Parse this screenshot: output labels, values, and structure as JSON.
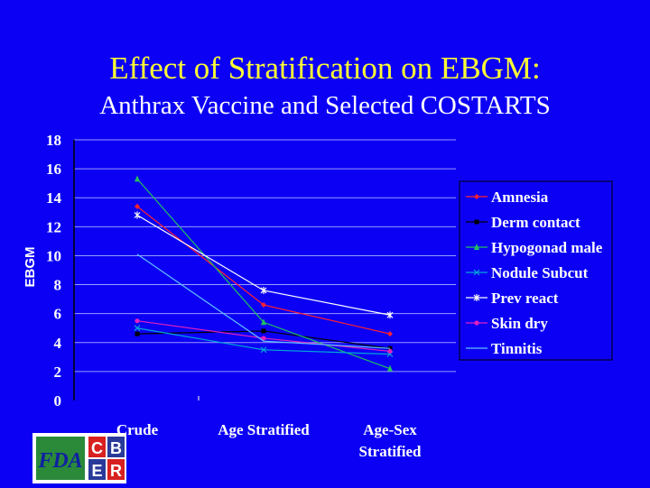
{
  "slide": {
    "title": "Effect of Stratification on EBGM:",
    "subtitle": "Anthrax Vaccine and Selected COSTARTS",
    "logo": {
      "fda": "FDA",
      "cber": [
        "C",
        "B",
        "E",
        "R"
      ]
    }
  },
  "colors": {
    "background": "#0b00f4",
    "title": "#ffff33",
    "text": "#ffffff"
  },
  "chart_data": {
    "type": "line",
    "title": "",
    "xlabel": "",
    "ylabel": "EBGM",
    "ylim": [
      0,
      18
    ],
    "yticks": [
      0,
      2,
      4,
      6,
      8,
      10,
      12,
      14,
      16,
      18
    ],
    "categories": [
      "Crude",
      "Age Stratified",
      "Age-Sex Stratified"
    ],
    "category_labels": [
      [
        "Crude"
      ],
      [
        "Age   Stratified"
      ],
      [
        "Age-Sex",
        "Stratified"
      ]
    ],
    "grid": true,
    "legend_position": "right",
    "series": [
      {
        "name": "Amnesia",
        "values": [
          13.4,
          6.6,
          4.6
        ],
        "color": "#ff2030",
        "marker": "diamond"
      },
      {
        "name": "Derm contact",
        "values": [
          4.6,
          4.8,
          3.6
        ],
        "color": "#000000",
        "marker": "square"
      },
      {
        "name": "Hypogonad male",
        "values": [
          15.3,
          5.4,
          2.2
        ],
        "color": "#20c060",
        "marker": "triangle"
      },
      {
        "name": "Nodule Subcut",
        "values": [
          5.0,
          3.5,
          3.2
        ],
        "color": "#00a8d8",
        "marker": "x"
      },
      {
        "name": "Prev react",
        "values": [
          12.8,
          7.6,
          5.9
        ],
        "color": "#ffffff",
        "marker": "star"
      },
      {
        "name": "Skin dry",
        "values": [
          5.5,
          4.3,
          3.4
        ],
        "color": "#e020c0",
        "marker": "circle"
      },
      {
        "name": "Tinnitis",
        "values": [
          10.1,
          4.1,
          3.6
        ],
        "color": "#60c0ff",
        "marker": "none"
      }
    ]
  }
}
